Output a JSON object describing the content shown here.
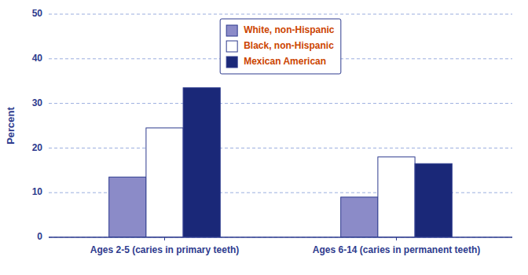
{
  "chart_data": {
    "type": "bar",
    "categories": [
      "Ages 2-5 (caries in primary teeth)",
      "Ages 6-14 (caries in permanent teeth)"
    ],
    "series": [
      {
        "name": "White, non-Hispanic",
        "color": "#8B8BC8",
        "values": [
          13.5,
          9.0
        ]
      },
      {
        "name": "Black, non-Hispanic",
        "color": "#ffffff",
        "values": [
          24.5,
          18.0
        ]
      },
      {
        "name": "Mexican American",
        "color": "#1a2878",
        "values": [
          33.5,
          16.5
        ]
      }
    ],
    "ylabel": "Percent",
    "ylim": [
      0,
      50
    ],
    "yticks": [
      0,
      10,
      20,
      30,
      40,
      50
    ],
    "grid": true,
    "legend": "top"
  }
}
